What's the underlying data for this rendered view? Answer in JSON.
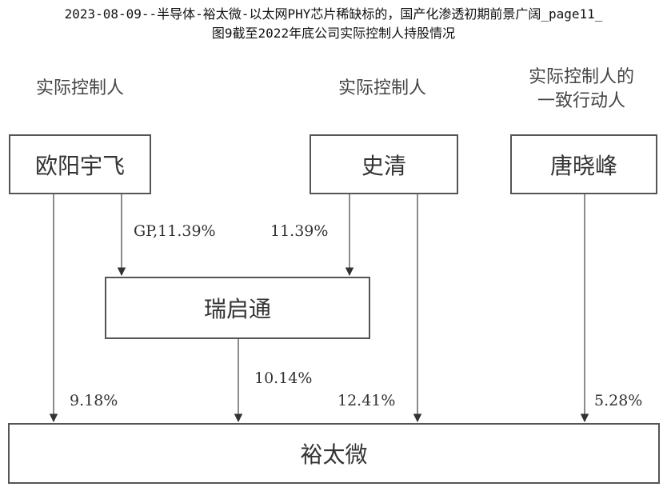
{
  "header": {
    "line1": "2023-08-09--半导体-裕太微-以太网PHY芯片稀缺标的，国产化渗透初期前景广阔_page11_",
    "line2": "图9截至2022年底公司实际控制人持股情况"
  },
  "roles": {
    "left": "实际控制人",
    "middle": "实际控制人",
    "right_line1": "实际控制人的",
    "right_line2": "一致行动人"
  },
  "nodes": {
    "ouyang": "欧阳宇飞",
    "shiqing": "史清",
    "tang": "唐晓峰",
    "ruiqitong": "瑞启通",
    "yutaiwei": "裕太微"
  },
  "edges": {
    "ouyang_to_ruiqitong": "GP,11.39%",
    "shiqing_to_ruiqitong": "11.39%",
    "ruiqitong_to_yutaiwei": "10.14%",
    "ouyang_to_yutaiwei": "9.18%",
    "shiqing_to_yutaiwei": "12.41%",
    "tang_to_yutaiwei": "5.28%"
  }
}
